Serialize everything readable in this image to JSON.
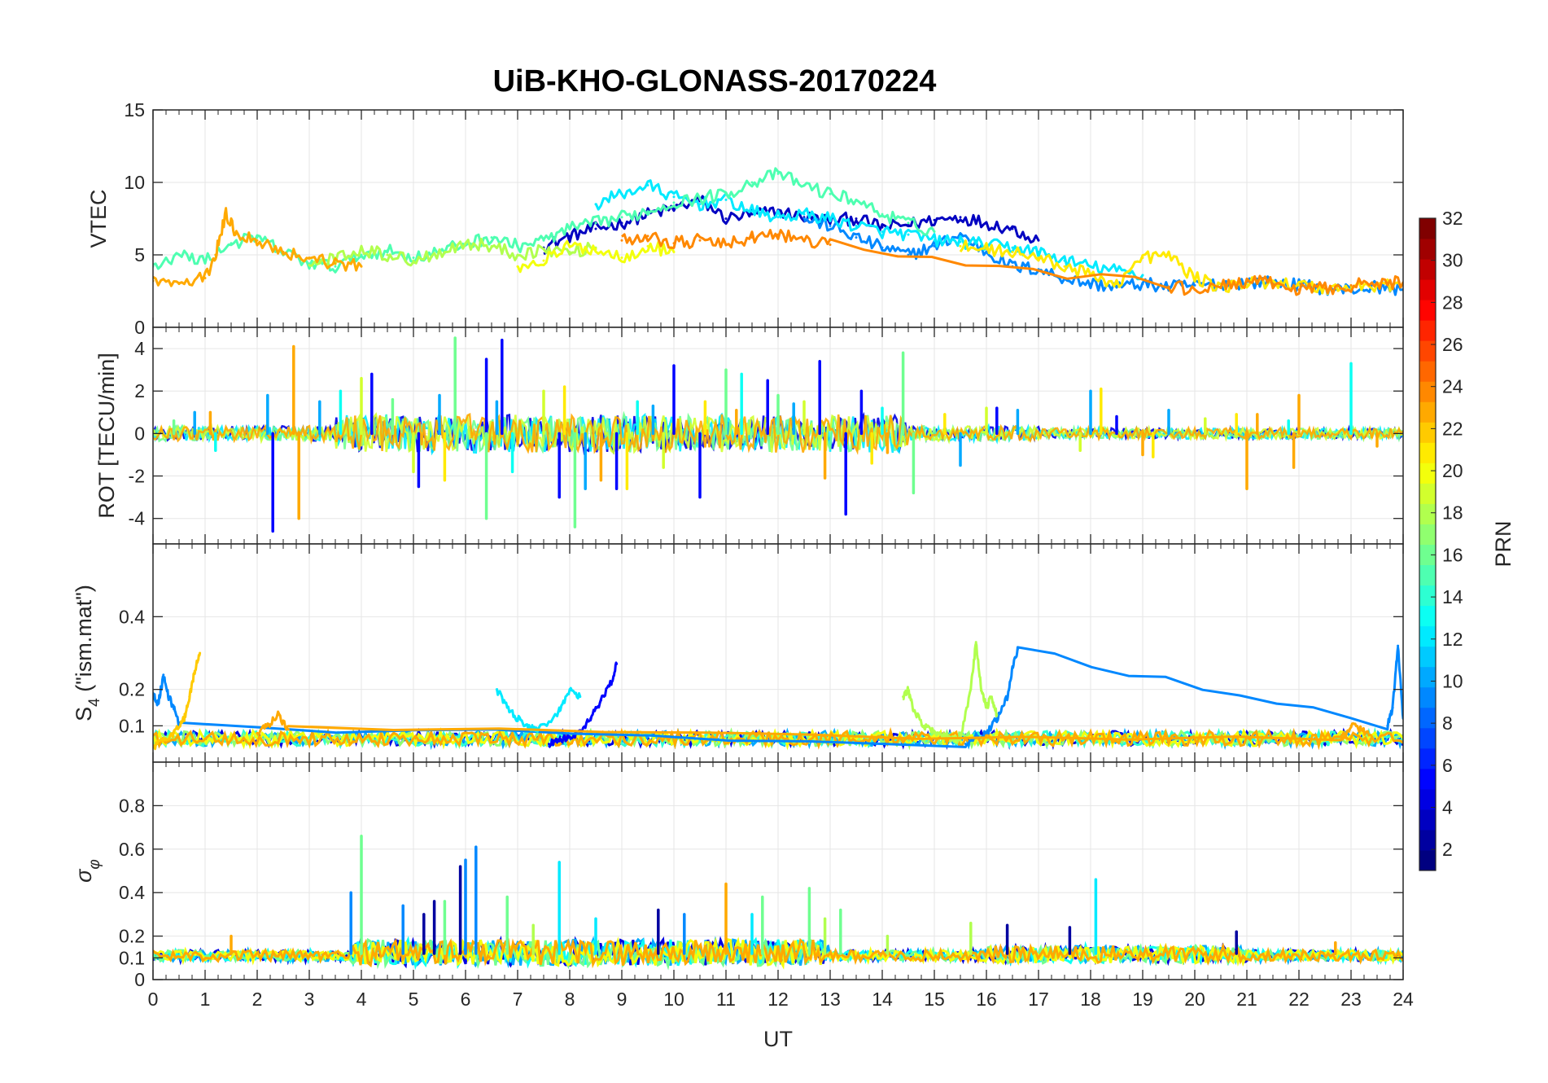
{
  "chart_data": [
    {
      "panel": "vtec",
      "type": "line",
      "title": "UiB-KHO-GLONASS-20170224",
      "xlabel": "",
      "ylabel": "VTEC",
      "xlim": [
        0,
        24
      ],
      "ylim": [
        0,
        15
      ],
      "yticks": [
        0,
        5,
        10,
        15
      ],
      "grid": true,
      "series": [
        {
          "name": "PRN 3",
          "prn": 3,
          "x": [
            7.5,
            8,
            8.5,
            9,
            9.5,
            10,
            10.5,
            11,
            11.5,
            12,
            12.5,
            13,
            13.5,
            14,
            14.5,
            15,
            15.5,
            16,
            16.5,
            17
          ],
          "y": [
            5.5,
            6.3,
            6.8,
            7.2,
            7.8,
            8.2,
            8.8,
            7.5,
            7.8,
            8.0,
            7.6,
            7.4,
            7.5,
            6.9,
            7.1,
            7.4,
            7.6,
            7.2,
            6.8,
            6.0
          ]
        },
        {
          "name": "PRN 9",
          "prn": 9,
          "x": [
            12.5,
            13,
            13.5,
            14,
            14.5,
            15,
            15.5,
            16,
            16.5,
            17,
            17.5,
            18,
            18.5,
            19,
            19.5,
            20,
            20.5,
            21,
            21.5,
            22,
            22.5,
            23,
            23.5,
            24
          ],
          "y": [
            7.5,
            7.0,
            6.2,
            5.5,
            5.0,
            5.6,
            6.4,
            5.2,
            4.2,
            4.0,
            3.4,
            3.0,
            2.8,
            3.0,
            2.8,
            2.9,
            3.0,
            3.1,
            3.1,
            2.9,
            2.7,
            2.6,
            2.8,
            2.6
          ]
        },
        {
          "name": "PRN 12",
          "prn": 12,
          "x": [
            8.5,
            9,
            9.5,
            10,
            10.5,
            11,
            11.5,
            12,
            12.5,
            13,
            13.5,
            14,
            14.5,
            15,
            15.5,
            16,
            16.5,
            17,
            17.5,
            18,
            18.5,
            19
          ],
          "y": [
            8.5,
            9.2,
            9.8,
            9.0,
            8.5,
            8.8,
            8.0,
            7.6,
            7.8,
            7.5,
            7.0,
            6.6,
            6.4,
            6.0,
            5.9,
            5.7,
            5.5,
            5.2,
            4.6,
            4.2,
            3.9,
            3.6
          ]
        },
        {
          "name": "PRN 15",
          "prn": 15,
          "x": [
            0,
            0.5,
            1,
            1.5,
            2,
            2.5,
            3,
            3.5,
            4,
            4.5,
            5,
            5.5,
            6,
            6.5,
            7,
            7.5,
            8,
            8.5,
            9,
            9.5,
            10,
            10.5,
            11,
            11.5,
            12,
            12.5,
            13,
            13.5,
            14,
            14.5,
            15
          ],
          "y": [
            4.2,
            5.0,
            4.6,
            5.8,
            6.2,
            5.2,
            4.4,
            4.2,
            5.0,
            5.3,
            4.8,
            5.2,
            5.8,
            6.2,
            5.6,
            6.0,
            6.8,
            7.2,
            7.6,
            8.0,
            8.6,
            8.9,
            9.2,
            10.0,
            10.6,
            9.8,
            9.2,
            8.8,
            7.8,
            7.2,
            6.6
          ]
        },
        {
          "name": "PRN 18",
          "prn": 18,
          "x": [
            3,
            3.5,
            4,
            4.5,
            5,
            5.5,
            6,
            6.5,
            7,
            7.5,
            8,
            8.5
          ],
          "y": [
            4.3,
            4.8,
            5.4,
            5.0,
            4.6,
            5.2,
            5.8,
            5.6,
            5.0,
            5.4,
            5.2,
            5.5
          ]
        },
        {
          "name": "PRN 20",
          "prn": 20,
          "x": [
            7,
            7.5,
            8,
            8.5,
            9,
            9.5,
            10
          ],
          "y": [
            4.2,
            4.6,
            5.6,
            5.4,
            4.8,
            5.6,
            5.2
          ]
        },
        {
          "name": "PRN 21",
          "prn": 21,
          "x": [
            15.5,
            16,
            16.5,
            17,
            17.5,
            18,
            18.5,
            19,
            19.5,
            20,
            20.5,
            21,
            21.5,
            22,
            22.5,
            23,
            23.5,
            24
          ],
          "y": [
            5.6,
            5.4,
            5.2,
            4.8,
            4.2,
            3.6,
            3.0,
            4.8,
            5.0,
            3.4,
            2.8,
            3.0,
            3.2,
            2.9,
            2.7,
            2.8,
            2.9,
            3.0
          ]
        },
        {
          "name": "PRN 23",
          "prn": 23,
          "x": [
            0,
            0.5,
            1,
            1.2,
            1.4,
            1.6,
            2,
            2.5,
            3,
            3.5,
            4
          ],
          "y": [
            3.2,
            3.0,
            3.4,
            5.0,
            7.8,
            6.5,
            6.0,
            5.2,
            4.8,
            4.4,
            4.2
          ]
        },
        {
          "name": "PRN 24",
          "prn": 24,
          "x": [
            9,
            9.5,
            10,
            10.5,
            11,
            11.5,
            12,
            12.5,
            13,
            19.5,
            20,
            20.5,
            21,
            21.5,
            22,
            22.5,
            23,
            23.5,
            24
          ],
          "y": [
            6.0,
            6.3,
            5.8,
            6.0,
            5.7,
            6.2,
            6.4,
            6.0,
            5.7,
            2.8,
            2.6,
            2.8,
            3.2,
            3.0,
            2.6,
            2.7,
            2.9,
            3.0,
            3.1
          ]
        }
      ]
    },
    {
      "panel": "rot",
      "type": "line",
      "xlabel": "",
      "ylabel": "ROT [TECU/min]",
      "xlim": [
        0,
        24
      ],
      "ylim": [
        -5.2,
        5
      ],
      "yticks": [
        -4,
        -2,
        0,
        2,
        4
      ],
      "grid": true,
      "series": [
        {
          "name": "PRN 5",
          "prn": 5,
          "spikes": [
            [
              2.3,
              -4.6
            ],
            [
              4.2,
              2.8
            ],
            [
              5.1,
              -2.5
            ],
            [
              6.7,
              4.4
            ],
            [
              6.4,
              3.5
            ],
            [
              7.8,
              -3.0
            ],
            [
              8.9,
              -2.6
            ],
            [
              10.0,
              3.2
            ],
            [
              10.5,
              -3.0
            ],
            [
              11.8,
              2.5
            ],
            [
              12.8,
              3.4
            ],
            [
              13.3,
              -3.8
            ],
            [
              13.6,
              2.0
            ],
            [
              16.2,
              1.2
            ],
            [
              18.5,
              0.8
            ]
          ]
        },
        {
          "name": "PRN 10",
          "prn": 10,
          "spikes": [
            [
              0.8,
              1.0
            ],
            [
              2.2,
              1.8
            ],
            [
              3.2,
              1.5
            ],
            [
              5.5,
              1.8
            ],
            [
              6.6,
              1.5
            ],
            [
              8.3,
              -2.6
            ],
            [
              9.6,
              1.3
            ],
            [
              12.3,
              1.4
            ],
            [
              15.5,
              -1.5
            ],
            [
              16.6,
              1.1
            ],
            [
              18.0,
              2.0
            ],
            [
              19.5,
              1.1
            ]
          ]
        },
        {
          "name": "PRN 13",
          "prn": 13,
          "spikes": [
            [
              1.2,
              -0.8
            ],
            [
              3.6,
              2.0
            ],
            [
              6.9,
              -1.8
            ],
            [
              9.3,
              1.5
            ],
            [
              11.3,
              2.8
            ],
            [
              14.0,
              1.2
            ],
            [
              23.0,
              3.3
            ],
            [
              21.8,
              0.6
            ]
          ]
        },
        {
          "name": "PRN 16",
          "prn": 16,
          "spikes": [
            [
              0.4,
              0.6
            ],
            [
              4.6,
              1.6
            ],
            [
              5.8,
              4.5
            ],
            [
              6.4,
              -4.0
            ],
            [
              8.1,
              -4.4
            ],
            [
              11.0,
              3.0
            ],
            [
              12.0,
              1.8
            ],
            [
              14.4,
              3.8
            ],
            [
              14.6,
              -2.8
            ]
          ]
        },
        {
          "name": "PRN 19",
          "prn": 19,
          "spikes": [
            [
              4.0,
              2.6
            ],
            [
              5.0,
              -1.8
            ],
            [
              7.5,
              2.0
            ],
            [
              9.8,
              -1.6
            ],
            [
              12.5,
              1.5
            ],
            [
              16.0,
              1.2
            ],
            [
              17.8,
              -0.8
            ],
            [
              20.2,
              0.7
            ]
          ]
        },
        {
          "name": "PRN 21",
          "prn": 21,
          "spikes": [
            [
              5.6,
              -2.2
            ],
            [
              7.9,
              2.2
            ],
            [
              9.1,
              -2.6
            ],
            [
              10.6,
              1.5
            ],
            [
              13.8,
              -1.4
            ],
            [
              15.2,
              0.9
            ],
            [
              18.2,
              2.1
            ],
            [
              19.2,
              -1.1
            ],
            [
              20.8,
              0.9
            ]
          ]
        },
        {
          "name": "PRN 23",
          "prn": 23,
          "spikes": [
            [
              1.1,
              1.0
            ],
            [
              2.7,
              4.1
            ],
            [
              2.8,
              -4.0
            ],
            [
              8.6,
              -2.2
            ],
            [
              11.2,
              1.1
            ],
            [
              12.9,
              -2.1
            ],
            [
              14.1,
              -0.9
            ],
            [
              19.0,
              -1.0
            ],
            [
              21.0,
              -2.6
            ],
            [
              21.2,
              0.9
            ],
            [
              22.0,
              1.8
            ],
            [
              21.9,
              -1.6
            ],
            [
              23.5,
              -0.6
            ]
          ]
        }
      ]
    },
    {
      "panel": "s4",
      "type": "line",
      "xlabel": "",
      "ylabel": "S4 (\"ism.mat\")",
      "ylabel_main": "S",
      "ylabel_sub": "4",
      "ylabel_rest": " (\"ism.mat\")",
      "xlim": [
        0,
        24
      ],
      "ylim": [
        0,
        0.6
      ],
      "yticks": [
        0.1,
        0.2,
        0.4
      ],
      "grid": true,
      "series": [
        {
          "name": "PRN 5",
          "prn": 5,
          "x": [
            7.6,
            7.8,
            8.0,
            8.2,
            8.4,
            8.6,
            8.8,
            8.9
          ],
          "y": [
            0.05,
            0.06,
            0.07,
            0.08,
            0.12,
            0.17,
            0.22,
            0.27
          ]
        },
        {
          "name": "PRN 9",
          "prn": 9,
          "x": [
            0,
            0.1,
            0.2,
            0.3,
            0.4,
            0.5,
            15.6,
            15.8,
            16.0,
            16.2,
            16.4,
            16.5,
            16.6,
            23.7,
            23.8,
            23.9,
            24.0
          ],
          "y": [
            0.19,
            0.16,
            0.24,
            0.18,
            0.15,
            0.1,
            0.05,
            0.07,
            0.08,
            0.12,
            0.18,
            0.26,
            0.31,
            0.1,
            0.15,
            0.32,
            0.12
          ]
        },
        {
          "name": "PRN 12",
          "prn": 12,
          "x": [
            6.6,
            6.8,
            7.0,
            7.2,
            7.4,
            7.8,
            8.0,
            8.2
          ],
          "y": [
            0.2,
            0.15,
            0.12,
            0.1,
            0.09,
            0.14,
            0.2,
            0.18
          ]
        },
        {
          "name": "PRN 18",
          "prn": 18,
          "x": [
            14.4,
            14.5,
            14.6,
            14.8,
            15.0,
            15.2,
            15.5,
            15.7,
            15.8,
            15.9,
            16.0,
            16.1,
            16.2
          ],
          "y": [
            0.18,
            0.2,
            0.14,
            0.1,
            0.08,
            0.07,
            0.06,
            0.2,
            0.33,
            0.2,
            0.15,
            0.18,
            0.13
          ]
        },
        {
          "name": "PRN 22",
          "prn": 22,
          "x": [
            0,
            0.2,
            0.4,
            0.6,
            0.7,
            0.8,
            0.9
          ],
          "y": [
            0.04,
            0.06,
            0.08,
            0.12,
            0.18,
            0.25,
            0.3
          ]
        },
        {
          "name": "PRN 23",
          "prn": 23,
          "x": [
            2.0,
            2.2,
            2.4,
            2.6,
            22.8,
            23.0,
            23.2,
            23.4
          ],
          "y": [
            0.08,
            0.1,
            0.13,
            0.09,
            0.06,
            0.1,
            0.09,
            0.07
          ]
        }
      ]
    },
    {
      "panel": "sigma_phi",
      "type": "line",
      "xlabel": "UT",
      "ylabel": "σφ",
      "ylabel_main": "σ",
      "ylabel_sub": "φ",
      "xlim": [
        0,
        24
      ],
      "ylim": [
        0,
        1
      ],
      "yticks": [
        0,
        0.1,
        0.2,
        0.4,
        0.6,
        0.8
      ],
      "xticks": [
        0,
        1,
        2,
        3,
        4,
        5,
        6,
        7,
        8,
        9,
        10,
        11,
        12,
        13,
        14,
        15,
        16,
        17,
        18,
        19,
        20,
        21,
        22,
        23,
        24
      ],
      "grid": true,
      "series": [
        {
          "name": "PRN 2",
          "prn": 2,
          "spikes": [
            [
              5.9,
              0.52
            ],
            [
              5.4,
              0.36
            ],
            [
              5.2,
              0.3
            ],
            [
              16.4,
              0.25
            ],
            [
              17.6,
              0.24
            ],
            [
              20.8,
              0.22
            ],
            [
              9.7,
              0.32
            ]
          ]
        },
        {
          "name": "PRN 9",
          "prn": 9,
          "spikes": [
            [
              3.8,
              0.4
            ],
            [
              6.2,
              0.61
            ],
            [
              6.0,
              0.55
            ],
            [
              4.8,
              0.34
            ],
            [
              10.2,
              0.3
            ]
          ]
        },
        {
          "name": "PRN 12",
          "prn": 12,
          "spikes": [
            [
              7.8,
              0.54
            ],
            [
              18.1,
              0.46
            ],
            [
              8.5,
              0.28
            ],
            [
              11.5,
              0.3
            ]
          ]
        },
        {
          "name": "PRN 16",
          "prn": 16,
          "spikes": [
            [
              4.0,
              0.66
            ],
            [
              6.8,
              0.38
            ],
            [
              11.7,
              0.38
            ],
            [
              12.6,
              0.42
            ],
            [
              13.2,
              0.32
            ],
            [
              5.6,
              0.36
            ]
          ]
        },
        {
          "name": "PRN 18",
          "prn": 18,
          "spikes": [
            [
              12.9,
              0.28
            ],
            [
              14.1,
              0.2
            ],
            [
              15.7,
              0.26
            ],
            [
              7.3,
              0.25
            ]
          ]
        },
        {
          "name": "PRN 23",
          "prn": 23,
          "spikes": [
            [
              11.0,
              0.44
            ],
            [
              1.5,
              0.2
            ],
            [
              22.7,
              0.17
            ]
          ]
        }
      ]
    }
  ],
  "colorbar": {
    "label": "PRN",
    "min": 1,
    "max": 32,
    "ticks": [
      "2",
      "4",
      "6",
      "8",
      "10",
      "12",
      "14",
      "16",
      "18",
      "20",
      "22",
      "24",
      "26",
      "28",
      "30",
      "32"
    ],
    "colormap": "jet"
  }
}
